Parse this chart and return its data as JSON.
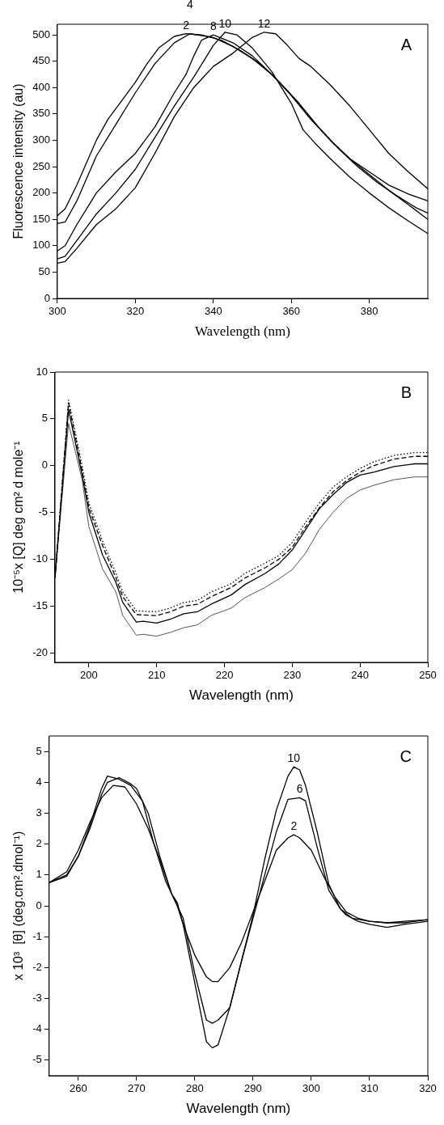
{
  "chart_data": [
    {
      "type": "line",
      "xlabel": "Wavelength (nm)",
      "ylabel": "Fluorescence intensity (au)",
      "xlim": [
        300,
        395
      ],
      "xticks": [
        300,
        320,
        340,
        360,
        380
      ],
      "ylim": [
        0,
        520
      ],
      "yticks": [
        0,
        50,
        100,
        150,
        200,
        250,
        300,
        350,
        400,
        450,
        500
      ],
      "grid": false,
      "legend": false,
      "marker": "none",
      "line_style": "solid",
      "annotations": [
        "A"
      ],
      "series": [
        {
          "name": "2",
          "color": "#000000",
          "x": [
            300,
            302,
            305,
            310,
            313,
            317,
            320,
            323,
            326,
            330,
            333,
            337,
            342,
            347,
            352,
            357,
            362,
            367,
            372,
            377,
            382,
            387,
            392,
            395
          ],
          "values": [
            157,
            170,
            215,
            300,
            340,
            380,
            410,
            445,
            475,
            497,
            502,
            500,
            490,
            470,
            445,
            410,
            370,
            325,
            285,
            250,
            220,
            195,
            172,
            162
          ]
        },
        {
          "name": "4",
          "color": "#000000",
          "x": [
            300,
            302,
            305,
            310,
            315,
            320,
            325,
            330,
            334,
            340,
            345,
            350,
            355,
            360,
            365,
            370,
            375,
            380,
            385,
            390,
            395
          ],
          "values": [
            142,
            145,
            185,
            270,
            330,
            390,
            445,
            485,
            502,
            495,
            478,
            455,
            425,
            385,
            340,
            300,
            265,
            235,
            205,
            178,
            150
          ]
        },
        {
          "name": "8",
          "color": "#000000",
          "x": [
            300,
            302,
            305,
            310,
            315,
            320,
            325,
            330,
            333,
            335,
            337,
            340,
            345,
            350,
            355,
            360,
            365,
            370,
            375,
            380,
            385,
            390,
            395
          ],
          "values": [
            90,
            100,
            140,
            200,
            240,
            275,
            325,
            390,
            425,
            460,
            490,
            500,
            485,
            460,
            425,
            385,
            340,
            300,
            265,
            240,
            215,
            198,
            185
          ]
        },
        {
          "name": "10",
          "color": "#000000",
          "x": [
            300,
            302,
            305,
            310,
            315,
            320,
            325,
            330,
            335,
            340,
            343,
            346,
            350,
            355,
            360,
            363,
            366,
            370,
            375,
            380,
            385,
            390,
            395
          ],
          "values": [
            75,
            80,
            110,
            160,
            200,
            245,
            305,
            365,
            420,
            480,
            505,
            500,
            475,
            430,
            370,
            320,
            295,
            265,
            230,
            200,
            172,
            147,
            123
          ]
        },
        {
          "name": "12",
          "color": "#000000",
          "x": [
            300,
            302,
            305,
            310,
            315,
            320,
            325,
            330,
            335,
            340,
            345,
            350,
            353,
            356,
            359,
            362,
            365,
            370,
            375,
            380,
            385,
            390,
            395
          ],
          "values": [
            67,
            70,
            95,
            140,
            170,
            210,
            275,
            345,
            400,
            440,
            465,
            495,
            505,
            502,
            480,
            455,
            440,
            405,
            365,
            320,
            275,
            240,
            208
          ]
        }
      ]
    },
    {
      "type": "line",
      "xlabel": "Wavelength (nm)",
      "ylabel": "10⁻⁵x [Q] deg cm² d mole⁻¹",
      "xlim": [
        195,
        250
      ],
      "xticks": [
        200,
        210,
        220,
        230,
        240,
        250
      ],
      "ylim": [
        -21,
        10
      ],
      "yticks": [
        -20,
        -15,
        -10,
        -5,
        0,
        5,
        10
      ],
      "grid": false,
      "legend": false,
      "marker": "none",
      "annotations": [
        "B"
      ],
      "series": [
        {
          "color": "#000000",
          "line_style": "dotted",
          "x": [
            195,
            197,
            199,
            200,
            202,
            204,
            205,
            207,
            210,
            212,
            214,
            216,
            218,
            221,
            223,
            226,
            228,
            230,
            232,
            234,
            236,
            238,
            240,
            242,
            245,
            248,
            250
          ],
          "values": [
            -12,
            7,
            0,
            -4,
            -8,
            -11.5,
            -13.5,
            -15.5,
            -15.6,
            -15.2,
            -14.6,
            -14.4,
            -13.5,
            -12.6,
            -11.5,
            -10.4,
            -9.6,
            -8.2,
            -6,
            -4,
            -2.3,
            -1.2,
            -0.3,
            0.4,
            1.1,
            1.4,
            1.4
          ]
        },
        {
          "color": "#000000",
          "line_style": "dashed",
          "x": [
            195,
            197,
            199,
            200,
            202,
            204,
            205,
            207,
            210,
            212,
            214,
            216,
            218,
            221,
            223,
            226,
            228,
            230,
            232,
            234,
            236,
            238,
            240,
            242,
            245,
            248,
            250
          ],
          "values": [
            -12,
            6.7,
            -0.5,
            -4.5,
            -8.5,
            -12,
            -14,
            -15.9,
            -16,
            -15.6,
            -15,
            -14.8,
            -14,
            -13,
            -12,
            -10.9,
            -10,
            -8.7,
            -6.5,
            -4.5,
            -2.8,
            -1.6,
            -0.7,
            0,
            0.7,
            1,
            1
          ]
        },
        {
          "color": "#000000",
          "line_style": "solid",
          "x": [
            195,
            197,
            199,
            200,
            202,
            204,
            205,
            207,
            208,
            210,
            212,
            214,
            216,
            218,
            221,
            223,
            226,
            228,
            230,
            232,
            234,
            236,
            238,
            240,
            242,
            245,
            248,
            250
          ],
          "values": [
            -12,
            6,
            -1,
            -5,
            -9.5,
            -12.5,
            -14.6,
            -16.7,
            -16.6,
            -16.8,
            -16.4,
            -15.8,
            -15.6,
            -14.8,
            -13.8,
            -12.7,
            -11.5,
            -10.5,
            -9,
            -6.8,
            -4.6,
            -3.1,
            -1.8,
            -1,
            -0.7,
            -0.1,
            0.2,
            0.2
          ]
        },
        {
          "color": "#555555",
          "line_style": "solid",
          "x": [
            195,
            197,
            199,
            200,
            202,
            204,
            205,
            207,
            208,
            210,
            212,
            214,
            216,
            218,
            221,
            223,
            226,
            228,
            230,
            232,
            234,
            236,
            238,
            240,
            242,
            245,
            248,
            250
          ],
          "values": [
            -12,
            4.5,
            -1.5,
            -6.5,
            -11,
            -13.5,
            -16,
            -18.1,
            -18,
            -18.2,
            -17.8,
            -17.3,
            -17,
            -16,
            -15.2,
            -14.1,
            -13,
            -12.1,
            -11.1,
            -9.3,
            -6.8,
            -5,
            -3.5,
            -2.6,
            -2.1,
            -1.5,
            -1.2,
            -1.2
          ]
        }
      ]
    },
    {
      "type": "line",
      "xlabel": "Wavelength (nm)",
      "ylabel": "x 10³  [θ] (deg.cm².dmol⁻¹)",
      "xlim": [
        255,
        320
      ],
      "xticks": [
        260,
        270,
        280,
        290,
        300,
        310,
        320
      ],
      "ylim": [
        -5.5,
        5.5
      ],
      "yticks": [
        -5,
        -4,
        -3,
        -2,
        -1,
        0,
        1,
        2,
        3,
        4,
        5
      ],
      "grid": false,
      "legend": false,
      "marker": "none",
      "line_style": "solid",
      "annotations": [
        "C"
      ],
      "series": [
        {
          "name": "10",
          "color": "#000000",
          "x": [
            255,
            258,
            260,
            262,
            264,
            265,
            267,
            269,
            270,
            272,
            274,
            276,
            277,
            278,
            280,
            282,
            283,
            284,
            286,
            288,
            290,
            292,
            294,
            296,
            297,
            298,
            299,
            301,
            303,
            305,
            306,
            308,
            310,
            313,
            316,
            320
          ],
          "values": [
            0.75,
            1,
            1.6,
            2.5,
            3.6,
            4,
            4.15,
            3.95,
            3.8,
            3,
            1.6,
            0.4,
            0,
            -0.6,
            -2.5,
            -4.4,
            -4.6,
            -4.5,
            -3.3,
            -1.8,
            -0.3,
            1.5,
            3.1,
            4.2,
            4.5,
            4.4,
            3.9,
            2.4,
            0.7,
            -0.1,
            -0.3,
            -0.5,
            -0.6,
            -0.7,
            -0.6,
            -0.5
          ]
        },
        {
          "name": "6",
          "color": "#000000",
          "x": [
            255,
            258,
            260,
            262,
            264,
            265,
            267,
            269,
            271,
            273,
            275,
            277,
            278,
            280,
            282,
            283,
            284,
            286,
            288,
            290,
            292,
            294,
            296,
            298,
            299,
            301,
            303,
            305,
            307,
            310,
            313,
            316,
            320
          ],
          "values": [
            0.75,
            0.95,
            1.6,
            2.6,
            3.8,
            4.2,
            4.1,
            3.9,
            3.4,
            2,
            0.8,
            0,
            -0.4,
            -2.2,
            -3.7,
            -3.8,
            -3.7,
            -3.3,
            -1.8,
            -0.4,
            1,
            2.4,
            3.45,
            3.5,
            3.4,
            1.9,
            0.5,
            -0.1,
            -0.4,
            -0.5,
            -0.55,
            -0.55,
            -0.45
          ]
        },
        {
          "name": "2",
          "color": "#000000",
          "x": [
            255,
            258,
            260,
            262,
            264,
            266,
            268,
            270,
            272,
            274,
            276,
            277,
            278,
            280,
            282,
            283,
            284,
            286,
            288,
            290,
            292,
            294,
            296,
            297,
            298,
            300,
            302,
            304,
            306,
            308,
            310,
            313,
            316,
            320
          ],
          "values": [
            0.75,
            1.1,
            1.8,
            2.7,
            3.5,
            3.9,
            3.85,
            3.3,
            2.5,
            1.5,
            0.4,
            0.1,
            -0.6,
            -1.6,
            -2.3,
            -2.45,
            -2.45,
            -2,
            -1.2,
            -0.2,
            0.8,
            1.8,
            2.2,
            2.3,
            2.2,
            1.8,
            1,
            0.3,
            -0.2,
            -0.4,
            -0.5,
            -0.55,
            -0.5,
            -0.45
          ]
        }
      ]
    }
  ]
}
